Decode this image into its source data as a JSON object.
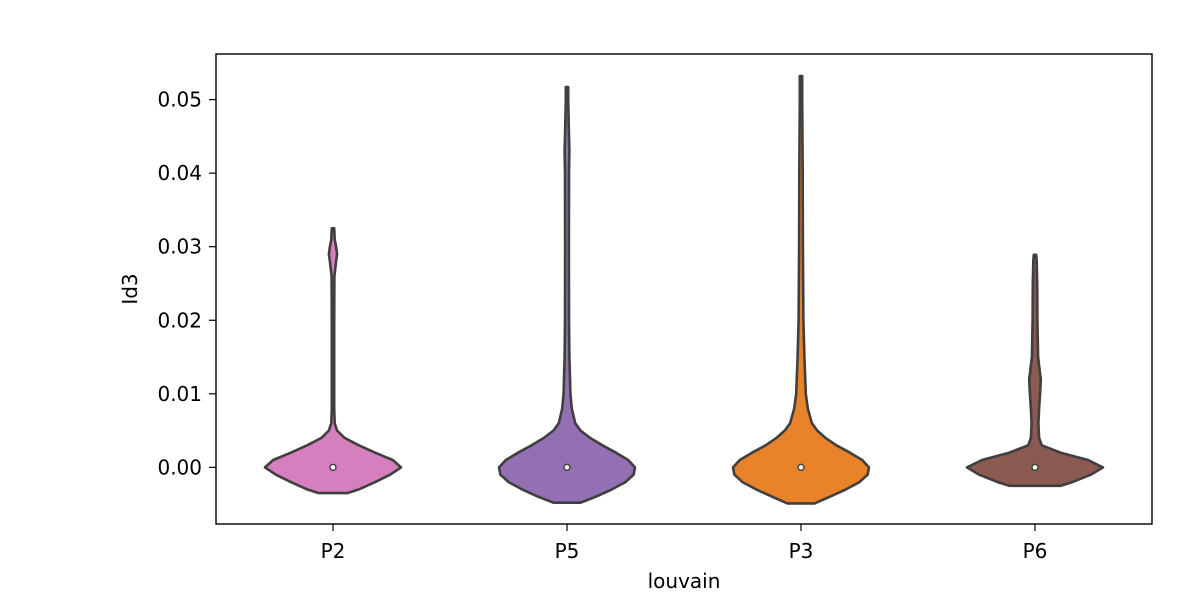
{
  "chart_data": {
    "type": "violin",
    "xlabel": "louvain",
    "ylabel": "Id3",
    "ylim": [
      -0.0077,
      0.0562
    ],
    "y_ticks": [
      0.0,
      0.01,
      0.02,
      0.03,
      0.04,
      0.05
    ],
    "y_tick_labels": [
      "0.00",
      "0.01",
      "0.02",
      "0.03",
      "0.04",
      "0.05"
    ],
    "grid": false,
    "inner": "median point",
    "categories": [
      "P2",
      "P5",
      "P3",
      "P6"
    ],
    "series": [
      {
        "category": "P2",
        "color": "#d67fbf",
        "median": 0.0,
        "min": -0.0035,
        "max": 0.0325,
        "density": [
          [
            -0.0035,
            0.21
          ],
          [
            -0.003,
            0.38
          ],
          [
            -0.002,
            0.62
          ],
          [
            -0.001,
            0.84
          ],
          [
            0.0,
            1.0
          ],
          [
            0.001,
            0.88
          ],
          [
            0.002,
            0.62
          ],
          [
            0.003,
            0.38
          ],
          [
            0.004,
            0.17
          ],
          [
            0.005,
            0.06
          ],
          [
            0.006,
            0.025
          ],
          [
            0.008,
            0.018
          ],
          [
            0.012,
            0.018
          ],
          [
            0.02,
            0.018
          ],
          [
            0.026,
            0.02
          ],
          [
            0.028,
            0.045
          ],
          [
            0.029,
            0.06
          ],
          [
            0.03,
            0.045
          ],
          [
            0.031,
            0.025
          ],
          [
            0.0325,
            0.0
          ]
        ]
      },
      {
        "category": "P5",
        "color": "#9370b3",
        "median": 0.0,
        "min": -0.0048,
        "max": 0.0517,
        "density": [
          [
            -0.0048,
            0.2
          ],
          [
            -0.004,
            0.42
          ],
          [
            -0.003,
            0.66
          ],
          [
            -0.002,
            0.86
          ],
          [
            -0.001,
            0.98
          ],
          [
            0.0,
            1.0
          ],
          [
            0.001,
            0.9
          ],
          [
            0.002,
            0.72
          ],
          [
            0.003,
            0.52
          ],
          [
            0.004,
            0.34
          ],
          [
            0.005,
            0.2
          ],
          [
            0.006,
            0.12
          ],
          [
            0.008,
            0.07
          ],
          [
            0.01,
            0.05
          ],
          [
            0.015,
            0.035
          ],
          [
            0.02,
            0.03
          ],
          [
            0.03,
            0.028
          ],
          [
            0.04,
            0.03
          ],
          [
            0.043,
            0.035
          ],
          [
            0.045,
            0.03
          ],
          [
            0.05,
            0.018
          ],
          [
            0.0517,
            0.0
          ]
        ]
      },
      {
        "category": "P3",
        "color": "#e8832a",
        "median": 0.0,
        "min": -0.0049,
        "max": 0.0532,
        "density": [
          [
            -0.0049,
            0.2
          ],
          [
            -0.004,
            0.42
          ],
          [
            -0.003,
            0.66
          ],
          [
            -0.002,
            0.86
          ],
          [
            -0.001,
            0.98
          ],
          [
            0.0,
            1.0
          ],
          [
            0.001,
            0.9
          ],
          [
            0.002,
            0.72
          ],
          [
            0.003,
            0.52
          ],
          [
            0.004,
            0.36
          ],
          [
            0.005,
            0.24
          ],
          [
            0.006,
            0.16
          ],
          [
            0.008,
            0.1
          ],
          [
            0.01,
            0.07
          ],
          [
            0.015,
            0.05
          ],
          [
            0.02,
            0.035
          ],
          [
            0.03,
            0.028
          ],
          [
            0.04,
            0.025
          ],
          [
            0.05,
            0.018
          ],
          [
            0.0532,
            0.0
          ]
        ]
      },
      {
        "category": "P6",
        "color": "#8b5a50",
        "median": 0.0,
        "min": -0.0025,
        "max": 0.0289,
        "density": [
          [
            -0.0025,
            0.38
          ],
          [
            -0.002,
            0.55
          ],
          [
            -0.001,
            0.82
          ],
          [
            0.0,
            1.0
          ],
          [
            0.001,
            0.78
          ],
          [
            0.002,
            0.38
          ],
          [
            0.003,
            0.1
          ],
          [
            0.004,
            0.06
          ],
          [
            0.006,
            0.05
          ],
          [
            0.008,
            0.06
          ],
          [
            0.01,
            0.075
          ],
          [
            0.012,
            0.085
          ],
          [
            0.013,
            0.07
          ],
          [
            0.015,
            0.045
          ],
          [
            0.02,
            0.035
          ],
          [
            0.025,
            0.032
          ],
          [
            0.028,
            0.025
          ],
          [
            0.0289,
            0.0
          ]
        ]
      }
    ]
  }
}
